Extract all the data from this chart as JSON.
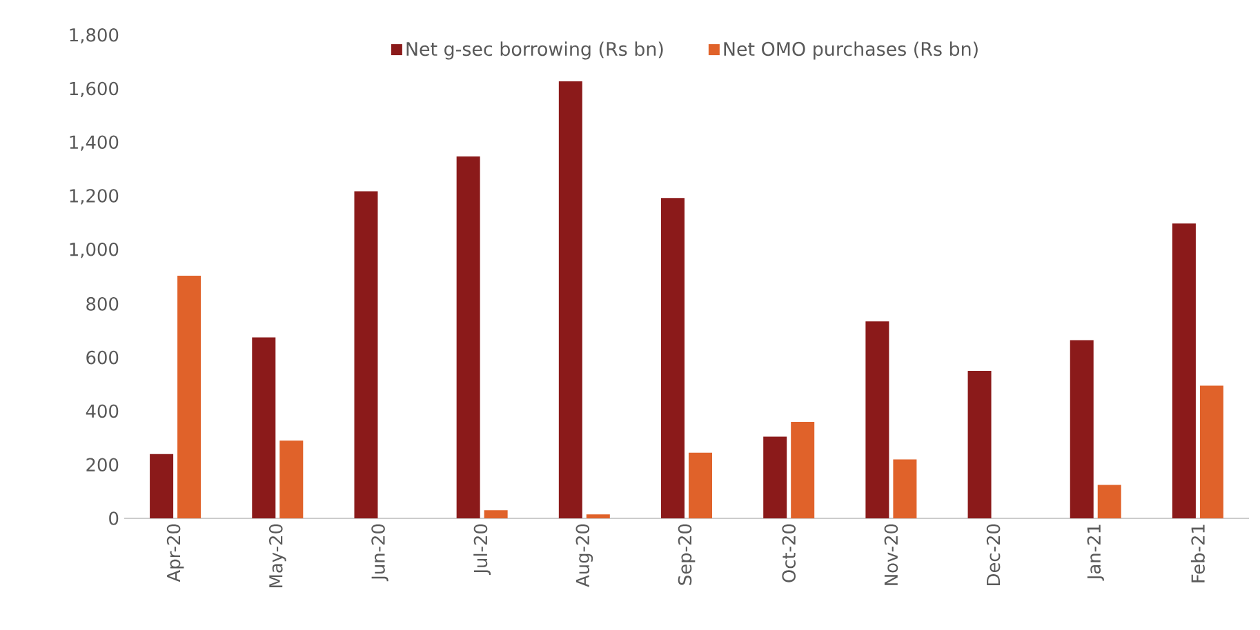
{
  "chart_data": {
    "type": "bar",
    "categories": [
      "Apr-20",
      "May-20",
      "Jun-20",
      "Jul-20",
      "Aug-20",
      "Sep-20",
      "Oct-20",
      "Nov-20",
      "Dec-20",
      "Jan-21",
      "Feb-21"
    ],
    "series": [
      {
        "name": "Net g-sec borrowing (Rs bn)",
        "color": "#8b1a1a",
        "values": [
          240,
          675,
          1220,
          1350,
          1630,
          1195,
          305,
          735,
          550,
          665,
          1100
        ]
      },
      {
        "name": "Net OMO purchases (Rs bn)",
        "color": "#e0622a",
        "values": [
          905,
          290,
          null,
          30,
          15,
          245,
          360,
          220,
          null,
          125,
          495
        ]
      }
    ],
    "ylim": [
      0,
      1800
    ],
    "yticks": [
      0,
      {
        "value": 200,
        "label": "200"
      },
      {
        "value": 400,
        "label": "400"
      },
      {
        "value": 600,
        "label": "600"
      },
      {
        "value": 800,
        "label": "800"
      },
      {
        "value": 1000,
        "label": "1,000"
      },
      {
        "value": 1200,
        "label": "1,200"
      },
      {
        "value": 1400,
        "label": "1,400"
      },
      {
        "value": 1600,
        "label": "1,600"
      },
      {
        "value": 1800,
        "label": "1,800"
      }
    ],
    "grid": false,
    "legend": "top"
  }
}
